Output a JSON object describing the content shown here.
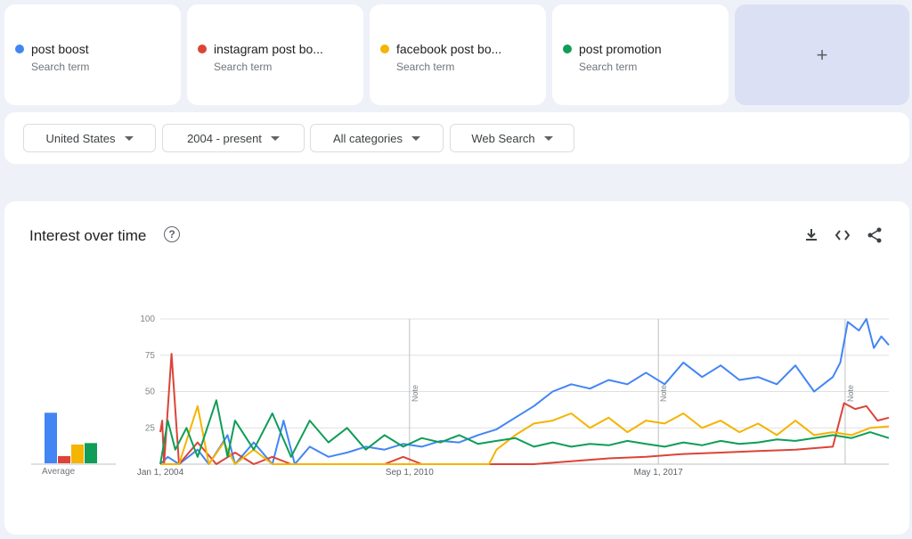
{
  "terms": [
    {
      "name": "post boost",
      "sub": "Search term",
      "color": "#4285f4"
    },
    {
      "name": "instagram post bo...",
      "sub": "Search term",
      "color": "#db4437"
    },
    {
      "name": "facebook post bo...",
      "sub": "Search term",
      "color": "#f4b400"
    },
    {
      "name": "post promotion",
      "sub": "Search term",
      "color": "#0f9d58"
    }
  ],
  "add_label": "+",
  "filters": {
    "region": "United States",
    "time": "2004 - present",
    "category": "All categories",
    "search_type": "Web Search"
  },
  "chart": {
    "title": "Interest over time",
    "help_label": "?",
    "average_label": "Average"
  },
  "chart_data": {
    "type": "line",
    "title": "Interest over time",
    "ylim": [
      0,
      100
    ],
    "y_ticks": [
      "100",
      "75",
      "50",
      "25"
    ],
    "x_tick_labels": [
      "Jan 1, 2004",
      "Sep 1, 2010",
      "May 1, 2017"
    ],
    "notes": [
      "Note",
      "Note",
      "Note"
    ],
    "x_range_years": [
      2004,
      2023.5
    ],
    "averages": [
      {
        "name": "post boost",
        "value": 35
      },
      {
        "name": "instagram post bo...",
        "value": 5
      },
      {
        "name": "facebook post bo...",
        "value": 13
      },
      {
        "name": "post promotion",
        "value": 14
      }
    ],
    "series": [
      {
        "name": "post boost",
        "points": [
          [
            2004,
            0
          ],
          [
            2004.2,
            5
          ],
          [
            2004.5,
            0
          ],
          [
            2005,
            10
          ],
          [
            2005.3,
            0
          ],
          [
            2005.8,
            20
          ],
          [
            2006,
            0
          ],
          [
            2006.5,
            15
          ],
          [
            2007,
            0
          ],
          [
            2007.3,
            30
          ],
          [
            2007.6,
            0
          ],
          [
            2008,
            12
          ],
          [
            2008.5,
            5
          ],
          [
            2009,
            8
          ],
          [
            2009.5,
            12
          ],
          [
            2010,
            10
          ],
          [
            2010.5,
            14
          ],
          [
            2011,
            12
          ],
          [
            2011.5,
            16
          ],
          [
            2012,
            15
          ],
          [
            2012.5,
            20
          ],
          [
            2013,
            24
          ],
          [
            2013.5,
            32
          ],
          [
            2014,
            40
          ],
          [
            2014.5,
            50
          ],
          [
            2015,
            55
          ],
          [
            2015.5,
            52
          ],
          [
            2016,
            58
          ],
          [
            2016.5,
            55
          ],
          [
            2017,
            63
          ],
          [
            2017.5,
            55
          ],
          [
            2018,
            70
          ],
          [
            2018.5,
            60
          ],
          [
            2019,
            68
          ],
          [
            2019.5,
            58
          ],
          [
            2020,
            60
          ],
          [
            2020.5,
            55
          ],
          [
            2021,
            68
          ],
          [
            2021.5,
            50
          ],
          [
            2022,
            60
          ],
          [
            2022.2,
            70
          ],
          [
            2022.4,
            98
          ],
          [
            2022.7,
            92
          ],
          [
            2022.9,
            100
          ],
          [
            2023.1,
            80
          ],
          [
            2023.3,
            88
          ],
          [
            2023.5,
            82
          ]
        ]
      },
      {
        "name": "instagram post bo...",
        "points": [
          [
            2004,
            22
          ],
          [
            2004.05,
            30
          ],
          [
            2004.1,
            0
          ],
          [
            2004.3,
            76
          ],
          [
            2004.5,
            0
          ],
          [
            2005,
            15
          ],
          [
            2005.5,
            0
          ],
          [
            2006,
            8
          ],
          [
            2006.5,
            0
          ],
          [
            2007,
            5
          ],
          [
            2007.5,
            0
          ],
          [
            2008,
            0
          ],
          [
            2009,
            0
          ],
          [
            2010,
            0
          ],
          [
            2010.5,
            5
          ],
          [
            2011,
            0
          ],
          [
            2012,
            0
          ],
          [
            2013,
            0
          ],
          [
            2014,
            0
          ],
          [
            2015,
            2
          ],
          [
            2016,
            4
          ],
          [
            2017,
            5
          ],
          [
            2018,
            7
          ],
          [
            2019,
            8
          ],
          [
            2020,
            9
          ],
          [
            2021,
            10
          ],
          [
            2022,
            12
          ],
          [
            2022.3,
            42
          ],
          [
            2022.6,
            38
          ],
          [
            2022.9,
            40
          ],
          [
            2023.2,
            30
          ],
          [
            2023.5,
            32
          ]
        ]
      },
      {
        "name": "facebook post bo...",
        "points": [
          [
            2004,
            0
          ],
          [
            2004.5,
            0
          ],
          [
            2005,
            40
          ],
          [
            2005.3,
            0
          ],
          [
            2005.7,
            15
          ],
          [
            2006,
            0
          ],
          [
            2006.5,
            10
          ],
          [
            2007,
            0
          ],
          [
            2008,
            0
          ],
          [
            2009,
            0
          ],
          [
            2010,
            0
          ],
          [
            2011,
            0
          ],
          [
            2012,
            0
          ],
          [
            2012.8,
            0
          ],
          [
            2013,
            10
          ],
          [
            2013.5,
            20
          ],
          [
            2014,
            28
          ],
          [
            2014.5,
            30
          ],
          [
            2015,
            35
          ],
          [
            2015.5,
            25
          ],
          [
            2016,
            32
          ],
          [
            2016.5,
            22
          ],
          [
            2017,
            30
          ],
          [
            2017.5,
            28
          ],
          [
            2018,
            35
          ],
          [
            2018.5,
            25
          ],
          [
            2019,
            30
          ],
          [
            2019.5,
            22
          ],
          [
            2020,
            28
          ],
          [
            2020.5,
            20
          ],
          [
            2021,
            30
          ],
          [
            2021.5,
            20
          ],
          [
            2022,
            22
          ],
          [
            2022.5,
            20
          ],
          [
            2023,
            25
          ],
          [
            2023.5,
            26
          ]
        ]
      },
      {
        "name": "post promotion",
        "points": [
          [
            2004,
            0
          ],
          [
            2004.2,
            30
          ],
          [
            2004.4,
            10
          ],
          [
            2004.7,
            25
          ],
          [
            2005,
            5
          ],
          [
            2005.5,
            44
          ],
          [
            2005.8,
            5
          ],
          [
            2006,
            30
          ],
          [
            2006.5,
            10
          ],
          [
            2007,
            35
          ],
          [
            2007.5,
            5
          ],
          [
            2008,
            30
          ],
          [
            2008.5,
            15
          ],
          [
            2009,
            25
          ],
          [
            2009.5,
            10
          ],
          [
            2010,
            20
          ],
          [
            2010.5,
            12
          ],
          [
            2011,
            18
          ],
          [
            2011.5,
            15
          ],
          [
            2012,
            20
          ],
          [
            2012.5,
            14
          ],
          [
            2013,
            16
          ],
          [
            2013.5,
            18
          ],
          [
            2014,
            12
          ],
          [
            2014.5,
            15
          ],
          [
            2015,
            12
          ],
          [
            2015.5,
            14
          ],
          [
            2016,
            13
          ],
          [
            2016.5,
            16
          ],
          [
            2017,
            14
          ],
          [
            2017.5,
            12
          ],
          [
            2018,
            15
          ],
          [
            2018.5,
            13
          ],
          [
            2019,
            16
          ],
          [
            2019.5,
            14
          ],
          [
            2020,
            15
          ],
          [
            2020.5,
            17
          ],
          [
            2021,
            16
          ],
          [
            2021.5,
            18
          ],
          [
            2022,
            20
          ],
          [
            2022.5,
            18
          ],
          [
            2023,
            22
          ],
          [
            2023.5,
            18
          ]
        ]
      }
    ]
  }
}
